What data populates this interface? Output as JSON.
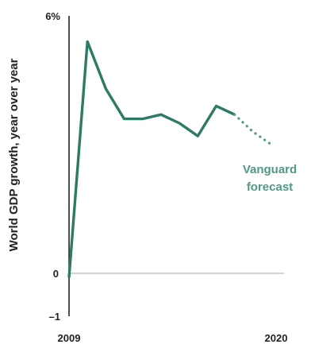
{
  "chart_data": {
    "type": "line",
    "title": "",
    "xlabel": "",
    "ylabel": "World GDP growth, year over year",
    "xlim": [
      2009,
      2020
    ],
    "ylim": [
      -1,
      6
    ],
    "x_tick_labels": [
      "2009",
      "2020"
    ],
    "y_tick_labels": [
      "6%",
      "0",
      "–1"
    ],
    "grid": false,
    "series": [
      {
        "name": "",
        "style": "solid",
        "x": [
          2009,
          2010,
          2011,
          2012,
          2013,
          2014,
          2015,
          2016,
          2017,
          2018
        ],
        "y": [
          -0.1,
          5.4,
          4.3,
          3.6,
          3.6,
          3.7,
          3.5,
          3.2,
          3.9,
          3.7
        ]
      },
      {
        "name": "Vanguard forecast",
        "style": "dotted",
        "x": [
          2018,
          2019,
          2020
        ],
        "y": [
          3.7,
          3.3,
          3.0
        ]
      }
    ],
    "annotations": [
      {
        "line1": "Vanguard",
        "line2": "forecast"
      }
    ],
    "colors": {
      "line": "#2f7a67",
      "forecast": "#4f9a86",
      "axis": "#222222",
      "zero_line": "#aaaaaa"
    }
  }
}
